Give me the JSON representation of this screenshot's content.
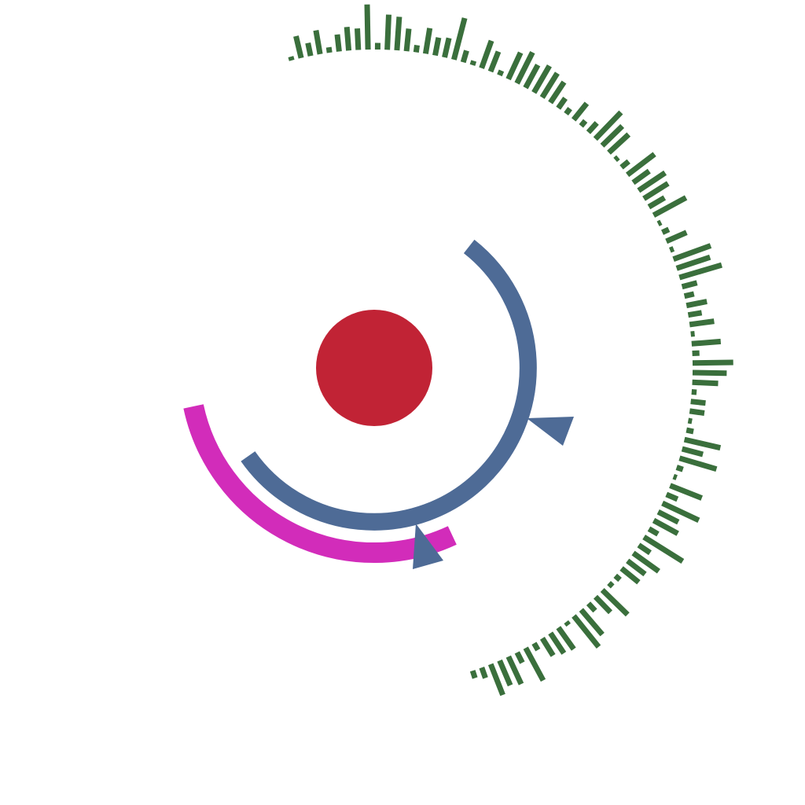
{
  "diagram": {
    "colors": {
      "background": "#ffffff",
      "center": "#c12335",
      "inner_arc": "#4e6b96",
      "outer_arc": "#d22cba",
      "bars": "#3a6f3c"
    },
    "elements": [
      "center-circle",
      "inner-arc-with-arrows",
      "outer-arc",
      "radial-bar-track"
    ],
    "radial_bar_values": [
      0.07,
      0.41,
      0.24,
      0.44,
      0.1,
      0.31,
      0.43,
      0.39,
      0.82,
      0.12,
      0.64,
      0.61,
      0.41,
      0.13,
      0.47,
      0.33,
      0.36,
      0.78,
      0.22,
      0.08,
      0.53,
      0.39,
      0.09,
      0.53,
      0.63,
      0.47,
      0.56,
      0.52,
      0.45,
      0.22,
      0.12,
      0.38,
      0.12,
      0.23,
      0.67,
      0.51,
      0.49,
      0.07,
      0.17,
      0.62,
      0.36,
      0.58,
      0.52,
      0.33,
      0.67,
      0.06,
      0.13,
      0.4,
      0.07,
      0.72,
      0.64,
      0.8,
      0.28,
      0.18,
      0.38,
      0.25,
      0.45,
      0.07,
      0.53,
      0.13,
      0.74,
      0.62,
      0.47,
      0.09,
      0.27,
      0.27,
      0.07,
      0.13,
      0.67,
      0.39,
      0.7,
      0.12,
      0.06,
      0.62,
      0.22,
      0.73,
      0.41,
      0.5,
      0.19,
      0.83,
      0.25,
      0.57,
      0.4,
      0.4,
      0.11,
      0.09,
      0.64,
      0.39,
      0.18,
      0.59,
      0.72,
      0.07,
      0.48,
      0.44,
      0.37,
      0.14,
      0.67,
      0.21,
      0.55,
      0.49,
      0.6,
      0.2,
      0.14
    ]
  }
}
